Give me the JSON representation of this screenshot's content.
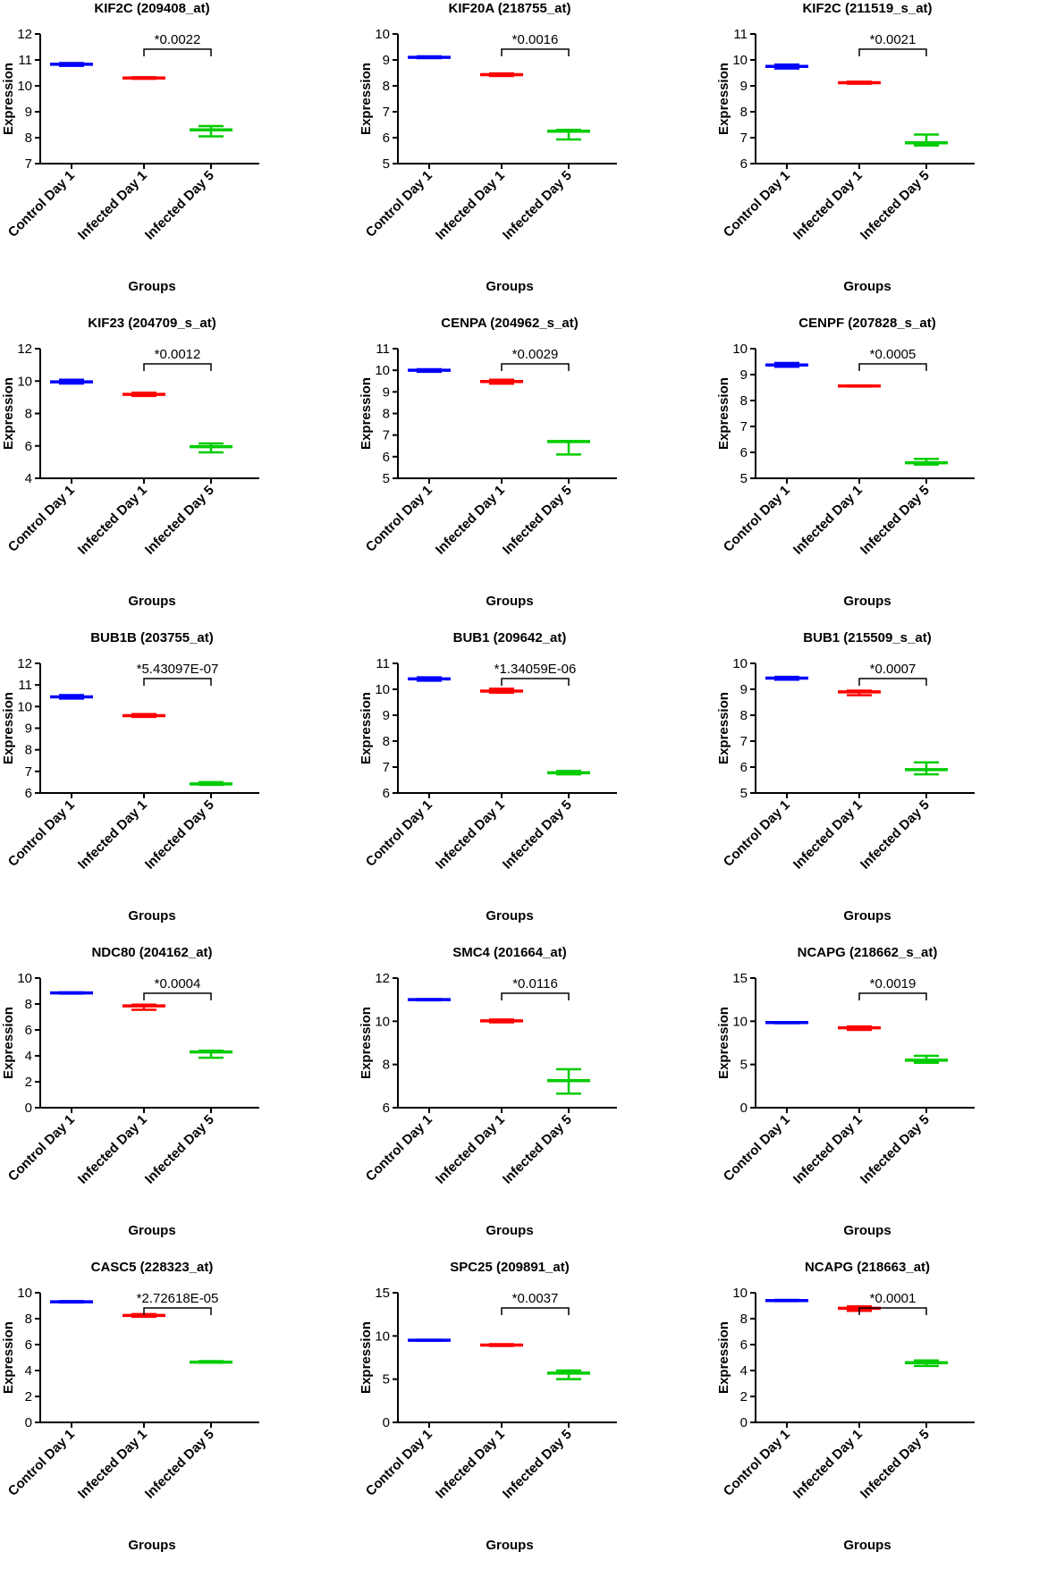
{
  "group_colors": [
    "#0000ff",
    "#ff0000",
    "#00cc00"
  ],
  "chart_data": [
    {
      "type": "scatter",
      "title": "KIF2C (209408_at)",
      "xlabel": "Groups",
      "ylabel": "Expression",
      "categories": [
        "Control Day 1",
        "Infected Day 1",
        "Infected Day 5"
      ],
      "ylim": [
        7,
        12
      ],
      "yticks": [
        7,
        8,
        9,
        10,
        11,
        12
      ],
      "grid": false,
      "series": [
        {
          "name": "Control Day 1",
          "mean": 10.83,
          "low": 10.77,
          "high": 10.88
        },
        {
          "name": "Infected Day 1",
          "mean": 10.3,
          "low": 10.27,
          "high": 10.33
        },
        {
          "name": "Infected Day 5",
          "mean": 8.3,
          "low": 8.05,
          "high": 8.45
        }
      ],
      "annotation": {
        "text": "*0.0022",
        "from": 1,
        "to": 2
      }
    },
    {
      "type": "scatter",
      "title": "KIF20A (218755_at)",
      "xlabel": "Groups",
      "ylabel": "Expression",
      "categories": [
        "Control Day 1",
        "Infected Day 1",
        "Infected Day 5"
      ],
      "ylim": [
        5,
        10
      ],
      "yticks": [
        5,
        6,
        7,
        8,
        9,
        10
      ],
      "grid": false,
      "series": [
        {
          "name": "Control Day 1",
          "mean": 9.1,
          "low": 9.07,
          "high": 9.14
        },
        {
          "name": "Infected Day 1",
          "mean": 8.43,
          "low": 8.38,
          "high": 8.48
        },
        {
          "name": "Infected Day 5",
          "mean": 6.25,
          "low": 5.93,
          "high": 6.3
        }
      ],
      "annotation": {
        "text": "*0.0016",
        "from": 1,
        "to": 2
      }
    },
    {
      "type": "scatter",
      "title": "KIF2C (211519_s_at)",
      "xlabel": "Groups",
      "ylabel": "Expression",
      "categories": [
        "Control Day 1",
        "Infected Day 1",
        "Infected Day 5"
      ],
      "ylim": [
        6,
        11
      ],
      "yticks": [
        6,
        7,
        8,
        9,
        10,
        11
      ],
      "grid": false,
      "series": [
        {
          "name": "Control Day 1",
          "mean": 9.75,
          "low": 9.67,
          "high": 9.82
        },
        {
          "name": "Infected Day 1",
          "mean": 9.12,
          "low": 9.08,
          "high": 9.16
        },
        {
          "name": "Infected Day 5",
          "mean": 6.8,
          "low": 6.7,
          "high": 7.12
        }
      ],
      "annotation": {
        "text": "*0.0021",
        "from": 1,
        "to": 2
      }
    },
    {
      "type": "scatter",
      "title": "KIF23 (204709_s_at)",
      "xlabel": "Groups",
      "ylabel": "Expression",
      "categories": [
        "Control Day 1",
        "Infected Day 1",
        "Infected Day 5"
      ],
      "ylim": [
        4,
        12
      ],
      "yticks": [
        4,
        6,
        8,
        10,
        12
      ],
      "grid": false,
      "series": [
        {
          "name": "Control Day 1",
          "mean": 9.95,
          "low": 9.85,
          "high": 10.08
        },
        {
          "name": "Infected Day 1",
          "mean": 9.18,
          "low": 9.08,
          "high": 9.28
        },
        {
          "name": "Infected Day 5",
          "mean": 5.95,
          "low": 5.6,
          "high": 6.15
        }
      ],
      "annotation": {
        "text": "*0.0012",
        "from": 1,
        "to": 2
      }
    },
    {
      "type": "scatter",
      "title": "CENPA (204962_s_at)",
      "xlabel": "Groups",
      "ylabel": "Expression",
      "categories": [
        "Control Day 1",
        "Infected Day 1",
        "Infected Day 5"
      ],
      "ylim": [
        5,
        11
      ],
      "yticks": [
        5,
        6,
        7,
        8,
        9,
        10,
        11
      ],
      "grid": false,
      "series": [
        {
          "name": "Control Day 1",
          "mean": 10.0,
          "low": 9.93,
          "high": 10.05
        },
        {
          "name": "Infected Day 1",
          "mean": 9.48,
          "low": 9.38,
          "high": 9.56
        },
        {
          "name": "Infected Day 5",
          "mean": 6.7,
          "low": 6.1,
          "high": 6.72
        }
      ],
      "annotation": {
        "text": "*0.0029",
        "from": 1,
        "to": 2
      }
    },
    {
      "type": "scatter",
      "title": "CENPF (207828_s_at)",
      "xlabel": "Groups",
      "ylabel": "Expression",
      "categories": [
        "Control Day 1",
        "Infected Day 1",
        "Infected Day 5"
      ],
      "ylim": [
        5,
        10
      ],
      "yticks": [
        5,
        6,
        7,
        8,
        9,
        10
      ],
      "grid": false,
      "series": [
        {
          "name": "Control Day 1",
          "mean": 9.37,
          "low": 9.3,
          "high": 9.45
        },
        {
          "name": "Infected Day 1",
          "mean": 8.56,
          "low": 8.54,
          "high": 8.58
        },
        {
          "name": "Infected Day 5",
          "mean": 5.6,
          "low": 5.53,
          "high": 5.75
        }
      ],
      "annotation": {
        "text": "*0.0005",
        "from": 1,
        "to": 2
      }
    },
    {
      "type": "scatter",
      "title": "BUB1B (203755_at)",
      "xlabel": "Groups",
      "ylabel": "Expression",
      "categories": [
        "Control Day 1",
        "Infected Day 1",
        "Infected Day 5"
      ],
      "ylim": [
        6,
        12
      ],
      "yticks": [
        6,
        7,
        8,
        9,
        10,
        11,
        12
      ],
      "grid": false,
      "series": [
        {
          "name": "Control Day 1",
          "mean": 10.45,
          "low": 10.37,
          "high": 10.53
        },
        {
          "name": "Infected Day 1",
          "mean": 9.58,
          "low": 9.52,
          "high": 9.65
        },
        {
          "name": "Infected Day 5",
          "mean": 6.42,
          "low": 6.38,
          "high": 6.5
        }
      ],
      "annotation": {
        "text": "*5.43097E-07",
        "from": 1,
        "to": 2
      }
    },
    {
      "type": "scatter",
      "title": "BUB1 (209642_at)",
      "xlabel": "Groups",
      "ylabel": "Expression",
      "categories": [
        "Control Day 1",
        "Infected Day 1",
        "Infected Day 5"
      ],
      "ylim": [
        6,
        11
      ],
      "yticks": [
        6,
        7,
        8,
        9,
        10,
        11
      ],
      "grid": false,
      "series": [
        {
          "name": "Control Day 1",
          "mean": 10.4,
          "low": 10.33,
          "high": 10.46
        },
        {
          "name": "Infected Day 1",
          "mean": 9.93,
          "low": 9.87,
          "high": 10.02
        },
        {
          "name": "Infected Day 5",
          "mean": 6.78,
          "low": 6.72,
          "high": 6.85
        }
      ],
      "annotation": {
        "text": "*1.34059E-06",
        "from": 1,
        "to": 2
      }
    },
    {
      "type": "scatter",
      "title": "BUB1 (215509_s_at)",
      "xlabel": "Groups",
      "ylabel": "Expression",
      "categories": [
        "Control Day 1",
        "Infected Day 1",
        "Infected Day 5"
      ],
      "ylim": [
        5,
        10
      ],
      "yticks": [
        5,
        6,
        7,
        8,
        9,
        10
      ],
      "grid": false,
      "series": [
        {
          "name": "Control Day 1",
          "mean": 9.43,
          "low": 9.37,
          "high": 9.48
        },
        {
          "name": "Infected Day 1",
          "mean": 8.9,
          "low": 8.77,
          "high": 8.95
        },
        {
          "name": "Infected Day 5",
          "mean": 5.9,
          "low": 5.72,
          "high": 6.18
        }
      ],
      "annotation": {
        "text": "*0.0007",
        "from": 1,
        "to": 2
      }
    },
    {
      "type": "scatter",
      "title": "NDC80 (204162_at)",
      "xlabel": "Groups",
      "ylabel": "Expression",
      "categories": [
        "Control Day 1",
        "Infected Day 1",
        "Infected Day 5"
      ],
      "ylim": [
        0,
        10
      ],
      "yticks": [
        0,
        2,
        4,
        6,
        8,
        10
      ],
      "grid": false,
      "series": [
        {
          "name": "Control Day 1",
          "mean": 8.85,
          "low": 8.8,
          "high": 8.9
        },
        {
          "name": "Infected Day 1",
          "mean": 7.85,
          "low": 7.55,
          "high": 7.95
        },
        {
          "name": "Infected Day 5",
          "mean": 4.3,
          "low": 3.85,
          "high": 4.4
        }
      ],
      "annotation": {
        "text": "*0.0004",
        "from": 1,
        "to": 2
      }
    },
    {
      "type": "scatter",
      "title": "SMC4 (201664_at)",
      "xlabel": "Groups",
      "ylabel": "Expression",
      "categories": [
        "Control Day 1",
        "Infected Day 1",
        "Infected Day 5"
      ],
      "ylim": [
        6,
        12
      ],
      "yticks": [
        6,
        8,
        10,
        12
      ],
      "grid": false,
      "series": [
        {
          "name": "Control Day 1",
          "mean": 11.0,
          "low": 10.97,
          "high": 11.03
        },
        {
          "name": "Infected Day 1",
          "mean": 10.02,
          "low": 9.95,
          "high": 10.08
        },
        {
          "name": "Infected Day 5",
          "mean": 7.25,
          "low": 6.65,
          "high": 7.78
        }
      ],
      "annotation": {
        "text": "*0.0116",
        "from": 1,
        "to": 2
      }
    },
    {
      "type": "scatter",
      "title": "NCAPG (218662_s_at)",
      "xlabel": "Groups",
      "ylabel": "Expression",
      "categories": [
        "Control Day 1",
        "Infected Day 1",
        "Infected Day 5"
      ],
      "ylim": [
        0,
        15
      ],
      "yticks": [
        0,
        5,
        10,
        15
      ],
      "grid": false,
      "series": [
        {
          "name": "Control Day 1",
          "mean": 9.85,
          "low": 9.78,
          "high": 9.9
        },
        {
          "name": "Infected Day 1",
          "mean": 9.25,
          "low": 9.0,
          "high": 9.4
        },
        {
          "name": "Infected Day 5",
          "mean": 5.5,
          "low": 5.2,
          "high": 6.0
        }
      ],
      "annotation": {
        "text": "*0.0019",
        "from": 1,
        "to": 2
      }
    },
    {
      "type": "scatter",
      "title": "CASC5 (228323_at)",
      "xlabel": "Groups",
      "ylabel": "Expression",
      "categories": [
        "Control Day 1",
        "Infected Day 1",
        "Infected Day 5"
      ],
      "ylim": [
        0,
        10
      ],
      "yticks": [
        0,
        2,
        4,
        6,
        8,
        10
      ],
      "grid": false,
      "series": [
        {
          "name": "Control Day 1",
          "mean": 9.3,
          "low": 9.25,
          "high": 9.35
        },
        {
          "name": "Infected Day 1",
          "mean": 8.25,
          "low": 8.15,
          "high": 8.35
        },
        {
          "name": "Infected Day 5",
          "mean": 4.65,
          "low": 4.6,
          "high": 4.72
        }
      ],
      "annotation": {
        "text": "*2.72618E-05",
        "from": 1,
        "to": 2
      }
    },
    {
      "type": "scatter",
      "title": "SPC25 (209891_at)",
      "xlabel": "Groups",
      "ylabel": "Expression",
      "categories": [
        "Control Day 1",
        "Infected Day 1",
        "Infected Day 5"
      ],
      "ylim": [
        0,
        15
      ],
      "yticks": [
        0,
        5,
        10,
        15
      ],
      "grid": false,
      "series": [
        {
          "name": "Control Day 1",
          "mean": 9.5,
          "low": 9.45,
          "high": 9.55
        },
        {
          "name": "Infected Day 1",
          "mean": 8.95,
          "low": 8.85,
          "high": 9.05
        },
        {
          "name": "Infected Day 5",
          "mean": 5.7,
          "low": 5.0,
          "high": 6.0
        }
      ],
      "annotation": {
        "text": "*0.0037",
        "from": 1,
        "to": 2
      }
    },
    {
      "type": "scatter",
      "title": "NCAPG (218663_at)",
      "xlabel": "Groups",
      "ylabel": "Expression",
      "categories": [
        "Control Day 1",
        "Infected Day 1",
        "Infected Day 5"
      ],
      "ylim": [
        0,
        10
      ],
      "yticks": [
        0,
        2,
        4,
        6,
        8,
        10
      ],
      "grid": false,
      "series": [
        {
          "name": "Control Day 1",
          "mean": 9.4,
          "low": 9.35,
          "high": 9.45
        },
        {
          "name": "Infected Day 1",
          "mean": 8.8,
          "low": 8.6,
          "high": 8.95
        },
        {
          "name": "Infected Day 5",
          "mean": 4.6,
          "low": 4.35,
          "high": 4.78
        }
      ],
      "annotation": {
        "text": "*0.0001",
        "from": 1,
        "to": 2
      }
    }
  ]
}
